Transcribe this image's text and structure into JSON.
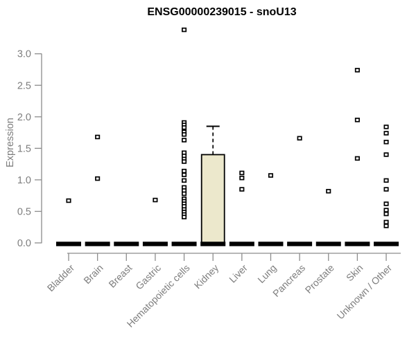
{
  "title": "ENSG00000239015 - snoU13",
  "chart_data": {
    "type": "boxplot",
    "title": "ENSG00000239015 - snoU13",
    "xlabel": "",
    "ylabel": "Expression",
    "ylim": [
      0,
      3.4
    ],
    "yticks": [
      0,
      0.5,
      1,
      1.5,
      2,
      2.5,
      3
    ],
    "ytick_labels": [
      "0.0",
      "0.5",
      "1.0",
      "1.5",
      "2.0",
      "2.5",
      "3.0"
    ],
    "grid": "off",
    "legend": "none",
    "categories": [
      "Bladder",
      "Brain",
      "Breast",
      "Gastric",
      "Hematopoietic cells",
      "Kidney",
      "Liver",
      "Lung",
      "Pancreas",
      "Prostate",
      "Skin",
      "Unknown / Other"
    ],
    "groups": [
      {
        "label": "Bladder",
        "median": 0,
        "points": [
          0.67
        ]
      },
      {
        "label": "Brain",
        "median": 0,
        "points": [
          1.68,
          1.02
        ]
      },
      {
        "label": "Breast",
        "median": 0,
        "points": []
      },
      {
        "label": "Gastric",
        "median": 0,
        "points": [
          0.68
        ]
      },
      {
        "label": "Hematopoietic cells",
        "median": 0,
        "points": [
          3.38,
          1.91,
          1.87,
          1.83,
          1.76,
          1.72,
          1.63,
          1.43,
          1.38,
          1.33,
          1.29,
          1.14,
          1.08,
          0.99,
          0.88,
          0.83,
          0.78,
          0.7,
          0.66,
          0.62,
          0.58,
          0.53,
          0.49,
          0.45,
          0.41
        ]
      },
      {
        "label": "Kidney",
        "median": 0,
        "points": []
      },
      {
        "label": "Liver",
        "median": 0,
        "points": [
          1.11,
          1.03,
          0.85
        ]
      },
      {
        "label": "Lung",
        "median": 0,
        "points": [
          1.07
        ]
      },
      {
        "label": "Pancreas",
        "median": 0,
        "points": [
          1.66
        ]
      },
      {
        "label": "Prostate",
        "median": 0,
        "points": [
          0.82
        ]
      },
      {
        "label": "Skin",
        "median": 0,
        "points": [
          2.74,
          1.95,
          1.34
        ]
      },
      {
        "label": "Unknown / Other",
        "median": 0,
        "points": [
          1.84,
          1.74,
          1.6,
          1.4,
          0.99,
          0.85,
          0.62,
          0.52,
          0.46,
          0.33,
          0.27
        ]
      }
    ],
    "box": {
      "category": "Kidney",
      "q1": 0,
      "median": 0,
      "q3": 1.4,
      "whisker_high": 1.85,
      "whisker_low": 0
    },
    "colors": {
      "axis": "#8c8c8c",
      "tick_label": "#7d7d7d",
      "marker": "#000000",
      "box_fill": "#ece8cc",
      "box_border": "#000000",
      "title": "#000000"
    }
  }
}
